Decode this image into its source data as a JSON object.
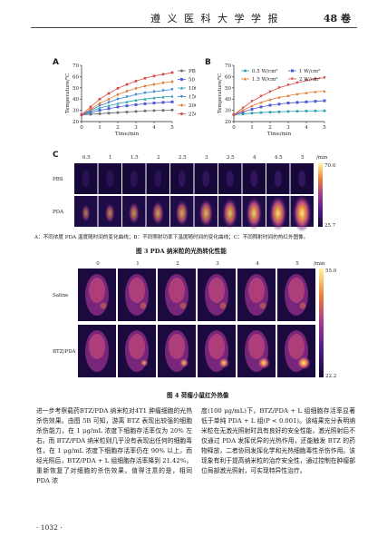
{
  "header": {
    "journal": "遵 义 医 科 大 学 学 报",
    "volume": "48 卷"
  },
  "figure3": {
    "panel_a": "A",
    "panel_b": "B",
    "panel_c": "C",
    "c_times": [
      "0.5",
      "1",
      "1.5",
      "2",
      "2.5",
      "3",
      "3.5",
      "4",
      "4.5",
      "5"
    ],
    "c_time_unit": "/min",
    "c_row_pbs": "PBS",
    "c_row_pda": "PDA",
    "c_scale_max": "70.0",
    "c_scale_min": "25.7",
    "caption": "A：不同浓度 PDA 温度随时间的变化曲线；B：不同照射功率下温度随时间的变化曲线；C：不同照射时间的热红外图像。",
    "title": "图 3   PDA 纳米粒的光热转化性能"
  },
  "figure4": {
    "times": [
      "0",
      "1",
      "2",
      "3",
      "4",
      "5"
    ],
    "time_unit": "/min",
    "row_saline": "Saline",
    "row_btz": "BTZ/PDA",
    "scale_max": "55.0",
    "scale_min": "22.2",
    "title": "图 4   荷瘤小鼠红外热像"
  },
  "body": {
    "left": "进一步考察载药BTZ/PDA 纳米粒对4T1 肿瘤细胞的光热杀伤效果。由图 5B 可知，游离 BTZ 表现出较强的细胞杀伤能力，在 1 μg/mL 浓度下细胞存活率仅为 20% 左右。而 BTZ/PDA 纳米粒则几乎没有表现出任何的细胞毒性，在 1 μg/mL 浓度下细胞存活率仍在 90% 以上，而经光照后，BTZ/PDA + L 组细胞存活率降到 21.42%，重新恢复了对细胞的杀伤效果。值得注意的是，相同 PDA 浓",
    "right": "度(100 μg/mL)下，BTZ/PDA + L 组细胞存活率显著低于单纯 PDA + L 组(P < 0.001)。该结果充分表明纳米粒在无激光照射时具有良好的安全性能，激光照射后不仅通过 PDA 发挥优异的光热作用，还能触发 BTZ 的药物释放，二者协同发挥化学和光热细胞毒性杀伤作用。该现象有利于提高纳米粒的治疗安全性，通过控制在肿瘤部位局部激光照射，可实现特异性治疗。"
  },
  "page_number": "· 1032 ·",
  "chart_data": [
    {
      "type": "line",
      "title": "",
      "xlabel": "Time/min",
      "ylabel": "Temperature/℃",
      "xlim": [
        0,
        5
      ],
      "ylim": [
        20,
        70
      ],
      "xticks": [
        0,
        1,
        2,
        3,
        4,
        5
      ],
      "yticks": [
        20,
        30,
        40,
        50,
        60,
        70
      ],
      "x": [
        0,
        0.5,
        1,
        1.5,
        2,
        2.5,
        3,
        3.5,
        4,
        4.5,
        5
      ],
      "legend_position": "right",
      "series": [
        {
          "name": "PBS",
          "color": "#6b6b6b",
          "marker": "circle",
          "values": [
            26,
            26.5,
            27,
            27.5,
            28,
            28.5,
            29,
            29.5,
            29.8,
            30,
            30.3
          ]
        },
        {
          "name": "50",
          "color": "#4d5bd6",
          "marker": "square",
          "values": [
            26,
            28,
            30,
            31.5,
            33,
            34,
            35,
            35.8,
            36.5,
            37,
            37.5
          ]
        },
        {
          "name": "100",
          "color": "#2aa0b0",
          "marker": "triangle",
          "values": [
            26,
            29,
            32,
            34,
            36,
            37.5,
            39,
            40,
            41,
            41.8,
            42.5
          ]
        },
        {
          "name": "150",
          "color": "#3a7fd8",
          "marker": "triangle-down",
          "values": [
            26,
            30,
            34,
            37,
            40,
            42,
            44,
            45.5,
            46.5,
            47.5,
            48.5
          ]
        },
        {
          "name": "200",
          "color": "#e37b2e",
          "marker": "diamond",
          "values": [
            26,
            31,
            36,
            40,
            44,
            47,
            49.5,
            51.5,
            53,
            54.5,
            55.5
          ]
        },
        {
          "name": "250",
          "color": "#d84a4a",
          "marker": "circle",
          "values": [
            26,
            33,
            40,
            45,
            49.5,
            53,
            56,
            58.5,
            60.5,
            62,
            63.5
          ]
        }
      ]
    },
    {
      "type": "line",
      "title": "",
      "xlabel": "Time/min",
      "ylabel": "Temperature/℃",
      "xlim": [
        0,
        5
      ],
      "ylim": [
        20,
        70
      ],
      "xticks": [
        0,
        1,
        2,
        3,
        4,
        5
      ],
      "yticks": [
        20,
        30,
        40,
        50,
        60,
        70
      ],
      "x": [
        0,
        0.5,
        1,
        1.5,
        2,
        2.5,
        3,
        3.5,
        4,
        4.5,
        5
      ],
      "legend_position": "top",
      "series": [
        {
          "name": "0.5 W/cm²",
          "color": "#2aa0b0",
          "marker": "circle",
          "values": [
            26,
            26.8,
            27.5,
            28,
            28.4,
            28.7,
            29,
            29.2,
            29.4,
            29.5,
            29.6
          ]
        },
        {
          "name": "1 W/cm²",
          "color": "#4d5bd6",
          "marker": "square",
          "values": [
            26,
            28.5,
            31,
            33,
            34.5,
            35.5,
            36.5,
            37,
            37.5,
            38,
            38.5
          ]
        },
        {
          "name": "1.5 W/cm²",
          "color": "#e37b2e",
          "marker": "triangle",
          "values": [
            26,
            30,
            34,
            37,
            39.5,
            41.5,
            43,
            44.5,
            45.5,
            46.5,
            47
          ]
        },
        {
          "name": "2 W/cm²",
          "color": "#d84a4a",
          "marker": "triangle-down",
          "values": [
            26,
            32,
            38,
            42.5,
            46.5,
            50,
            52.5,
            54.5,
            56.5,
            58,
            59
          ]
        }
      ]
    }
  ]
}
